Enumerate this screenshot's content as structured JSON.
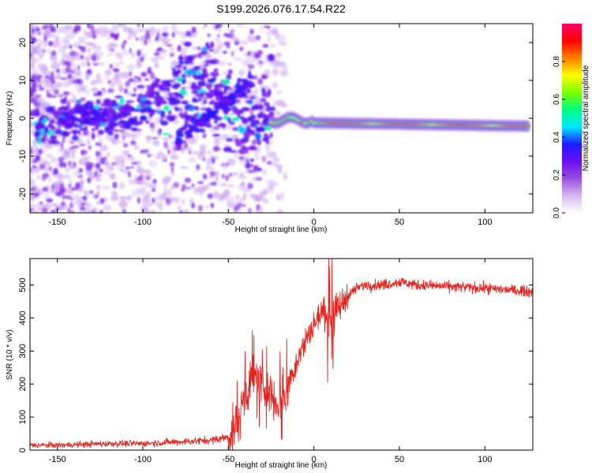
{
  "title": "S199.2026.076.17.54.R22",
  "chart_data": [
    {
      "type": "heatmap",
      "name": "spectrogram",
      "xlabel": "Height of straight line (km)",
      "ylabel": "Frequency (Hz)",
      "xlim": [
        -166,
        128
      ],
      "ylim": [
        -25,
        25
      ],
      "xticks": [
        -150,
        -100,
        -50,
        0,
        50,
        100
      ],
      "yticks": [
        -20,
        -10,
        0,
        10,
        20
      ],
      "xtick_labels": [
        "-150",
        "-100",
        "-50",
        "0",
        "50",
        "100"
      ],
      "ytick_labels": [
        "-20",
        "-10",
        "0",
        "10",
        "20"
      ],
      "colorbar": {
        "label": "Normalized spectral amplitude",
        "range": [
          0,
          1
        ],
        "ticks": [
          0.0,
          0.2,
          0.4,
          0.6,
          0.8
        ],
        "tick_labels": [
          "0.0",
          "0.2",
          "0.4",
          "0.6",
          "0.8"
        ],
        "colors": [
          "#ffffff",
          "#d6b8f2",
          "#9b4de0",
          "#6a0df0",
          "#1c1cff",
          "#00e8ff",
          "#00ff80",
          "#7cff00",
          "#ffff00",
          "#ff8000",
          "#ff0000",
          "#ff0066"
        ]
      },
      "ridge": [
        {
          "x": -150,
          "y": 0
        },
        {
          "x": -120,
          "y": 0
        },
        {
          "x": -100,
          "y": 3
        },
        {
          "x": -80,
          "y": 8
        },
        {
          "x": -60,
          "y": 10
        },
        {
          "x": -40,
          "y": -5
        },
        {
          "x": -25,
          "y": 0
        },
        {
          "x": 0,
          "y": -1
        },
        {
          "x": 50,
          "y": -1
        },
        {
          "x": 100,
          "y": -1.5
        },
        {
          "x": 125,
          "y": -2
        }
      ]
    },
    {
      "type": "line",
      "name": "snr",
      "xlabel": "Height of straight line (km)",
      "ylabel": "SNR (10 * v/v)",
      "xlim": [
        -166,
        128
      ],
      "ylim": [
        0,
        580
      ],
      "xticks": [
        -150,
        -100,
        -50,
        0,
        50,
        100
      ],
      "yticks": [
        0,
        100,
        200,
        300,
        400,
        500
      ],
      "xtick_labels": [
        "-150",
        "-100",
        "-50",
        "0",
        "50",
        "100"
      ],
      "ytick_labels": [
        "0",
        "100",
        "200",
        "300",
        "400",
        "500"
      ],
      "color": "#e8231e",
      "series": [
        {
          "name": "SNR",
          "x": [
            -166,
            -150,
            -120,
            -100,
            -80,
            -60,
            -50,
            -45,
            -40,
            -35,
            -30,
            -25,
            -20,
            -15,
            -10,
            -5,
            0,
            5,
            10,
            15,
            20,
            25,
            30,
            40,
            50,
            60,
            80,
            100,
            128
          ],
          "values": [
            15,
            15,
            20,
            20,
            25,
            30,
            40,
            80,
            170,
            230,
            200,
            170,
            140,
            200,
            270,
            330,
            380,
            420,
            400,
            430,
            470,
            490,
            500,
            500,
            510,
            500,
            495,
            490,
            480
          ]
        }
      ]
    }
  ]
}
